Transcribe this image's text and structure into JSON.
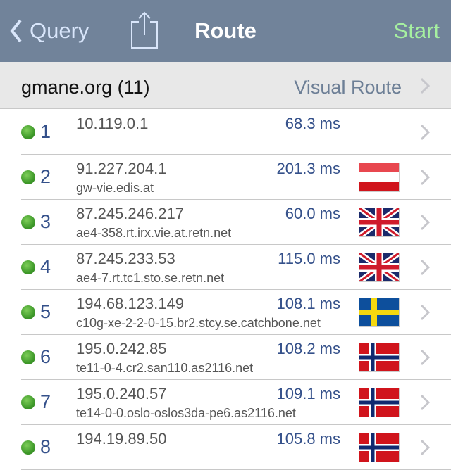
{
  "nav": {
    "back_label": "Query",
    "title": "Route",
    "start_label": "Start"
  },
  "header": {
    "host": "gmane.org (11)",
    "visual_route_label": "Visual Route"
  },
  "colors": {
    "nav_bg": "#71839a",
    "start": "#a6f0a0",
    "status_ok": "#3f9a2a"
  },
  "hops": [
    {
      "num": "1",
      "ip": "10.119.0.1",
      "host": "",
      "ms": "68.3 ms",
      "flag": ""
    },
    {
      "num": "2",
      "ip": "91.227.204.1",
      "host": "gw-vie.edis.at",
      "ms": "201.3 ms",
      "flag": "austria"
    },
    {
      "num": "3",
      "ip": "87.245.246.217",
      "host": "ae4-358.rt.irx.vie.at.retn.net",
      "ms": "60.0 ms",
      "flag": "uk"
    },
    {
      "num": "4",
      "ip": "87.245.233.53",
      "host": "ae4-7.rt.tc1.sto.se.retn.net",
      "ms": "115.0 ms",
      "flag": "uk"
    },
    {
      "num": "5",
      "ip": "194.68.123.149",
      "host": "c10g-xe-2-2-0-15.br2.stcy.se.catchbone.net",
      "ms": "108.1 ms",
      "flag": "sweden"
    },
    {
      "num": "6",
      "ip": "195.0.242.85",
      "host": "te11-0-4.cr2.san110.as2116.net",
      "ms": "108.2 ms",
      "flag": "norway"
    },
    {
      "num": "7",
      "ip": "195.0.240.57",
      "host": "te14-0-0.oslo-oslos3da-pe6.as2116.net",
      "ms": "109.1 ms",
      "flag": "norway"
    },
    {
      "num": "8",
      "ip": "194.19.89.50",
      "host": "",
      "ms": "105.8 ms",
      "flag": "norway"
    }
  ]
}
